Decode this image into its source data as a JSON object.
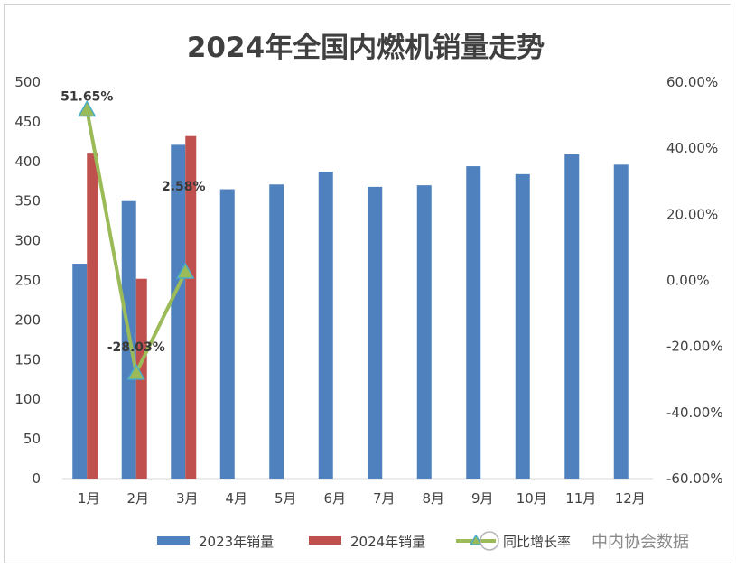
{
  "chart_data": {
    "type": "bar",
    "title": "2024年全国内燃机销量走势",
    "categories": [
      "1月",
      "2月",
      "3月",
      "4月",
      "5月",
      "6月",
      "7月",
      "8月",
      "9月",
      "10月",
      "11月",
      "12月"
    ],
    "series": [
      {
        "name": "2023年销量",
        "kind": "bar",
        "axis": "left",
        "color": "#4e81bd",
        "values": [
          271,
          350,
          421,
          365,
          371,
          387,
          368,
          370,
          394,
          384,
          409,
          396
        ]
      },
      {
        "name": "2024年销量",
        "kind": "bar",
        "axis": "left",
        "color": "#c0504d",
        "values": [
          411,
          252,
          432,
          null,
          null,
          null,
          null,
          null,
          null,
          null,
          null,
          null
        ]
      },
      {
        "name": "同比增长率",
        "kind": "line",
        "axis": "right",
        "color": "#9bbb59",
        "marker": "triangle",
        "marker_color": "#4bacc6",
        "values": [
          51.65,
          -28.03,
          2.58,
          null,
          null,
          null,
          null,
          null,
          null,
          null,
          null,
          null
        ],
        "data_labels": [
          "51.65%",
          "-28.03%",
          "2.58%"
        ]
      }
    ],
    "y_left": {
      "min": 0,
      "max": 500,
      "ticks": [
        "0",
        "50",
        "100",
        "150",
        "200",
        "250",
        "300",
        "350",
        "400",
        "450",
        "500"
      ]
    },
    "y_right": {
      "min": -60,
      "max": 60,
      "ticks": [
        "-60.00%",
        "-40.00%",
        "-20.00%",
        "0.00%",
        "20.00%",
        "40.00%",
        "60.00%"
      ]
    },
    "grid": false,
    "legend_position": "bottom"
  },
  "watermark": {
    "text": "中内协会数据"
  }
}
